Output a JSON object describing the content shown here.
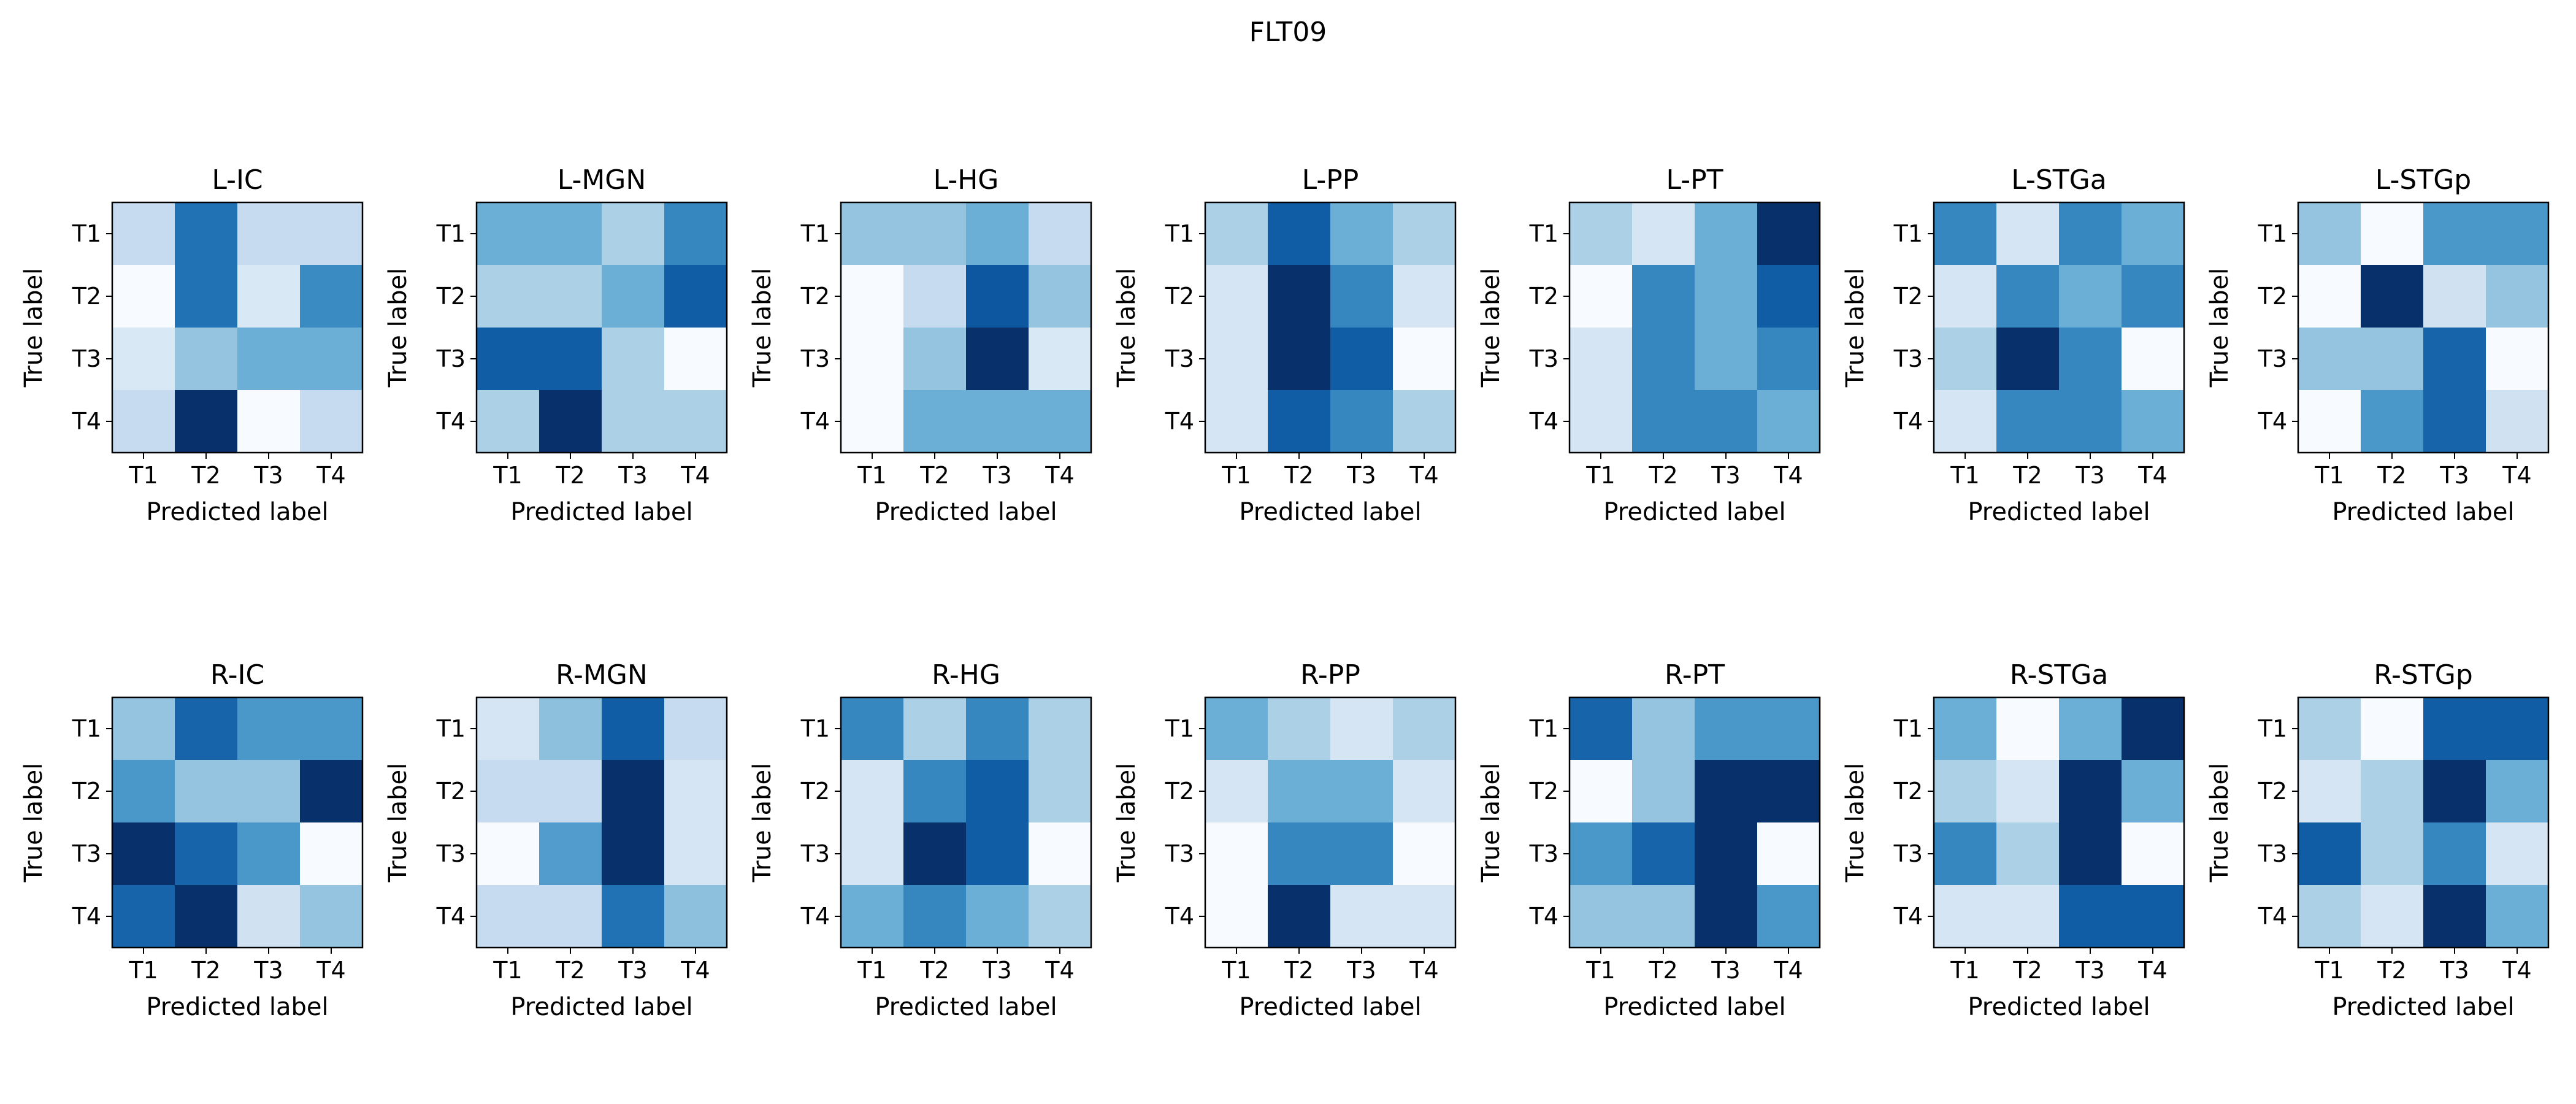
{
  "title": "FLT09",
  "colormap": {
    "name": "Blues",
    "low_color": "#f7fbff",
    "high_color": "#08306b"
  },
  "chart_data": [
    {
      "type": "heatmap",
      "title": "L-IC",
      "xlabel": "Predicted label",
      "ylabel": "True label",
      "x_ticks": [
        "T1",
        "T2",
        "T3",
        "T4"
      ],
      "y_ticks": [
        "T1",
        "T2",
        "T3",
        "T4"
      ],
      "values": [
        [
          0.25,
          0.75,
          0.25,
          0.25
        ],
        [
          0.0,
          0.75,
          0.15,
          0.65
        ],
        [
          0.15,
          0.4,
          0.5,
          0.5
        ],
        [
          0.25,
          1.0,
          0.0,
          0.25
        ]
      ]
    },
    {
      "type": "heatmap",
      "title": "L-MGN",
      "xlabel": "Predicted label",
      "ylabel": "True label",
      "x_ticks": [
        "T1",
        "T2",
        "T3",
        "T4"
      ],
      "y_ticks": [
        "T1",
        "T2",
        "T3",
        "T4"
      ],
      "values": [
        [
          0.5,
          0.5,
          0.33,
          0.67
        ],
        [
          0.33,
          0.33,
          0.5,
          0.83
        ],
        [
          0.83,
          0.83,
          0.33,
          0.0
        ],
        [
          0.33,
          1.0,
          0.33,
          0.33
        ]
      ]
    },
    {
      "type": "heatmap",
      "title": "L-HG",
      "xlabel": "Predicted label",
      "ylabel": "True label",
      "x_ticks": [
        "T1",
        "T2",
        "T3",
        "T4"
      ],
      "y_ticks": [
        "T1",
        "T2",
        "T3",
        "T4"
      ],
      "values": [
        [
          0.4,
          0.4,
          0.5,
          0.25
        ],
        [
          0.0,
          0.25,
          0.85,
          0.4
        ],
        [
          0.0,
          0.4,
          1.0,
          0.15
        ],
        [
          0.0,
          0.5,
          0.5,
          0.5
        ]
      ]
    },
    {
      "type": "heatmap",
      "title": "L-PP",
      "xlabel": "Predicted label",
      "ylabel": "True label",
      "x_ticks": [
        "T1",
        "T2",
        "T3",
        "T4"
      ],
      "y_ticks": [
        "T1",
        "T2",
        "T3",
        "T4"
      ],
      "values": [
        [
          0.33,
          0.83,
          0.5,
          0.33
        ],
        [
          0.17,
          1.0,
          0.67,
          0.17
        ],
        [
          0.17,
          1.0,
          0.83,
          0.0
        ],
        [
          0.17,
          0.83,
          0.67,
          0.33
        ]
      ]
    },
    {
      "type": "heatmap",
      "title": "L-PT",
      "xlabel": "Predicted label",
      "ylabel": "True label",
      "x_ticks": [
        "T1",
        "T2",
        "T3",
        "T4"
      ],
      "y_ticks": [
        "T1",
        "T2",
        "T3",
        "T4"
      ],
      "values": [
        [
          0.33,
          0.17,
          0.5,
          1.0
        ],
        [
          0.0,
          0.67,
          0.5,
          0.83
        ],
        [
          0.17,
          0.67,
          0.5,
          0.67
        ],
        [
          0.17,
          0.67,
          0.67,
          0.5
        ]
      ]
    },
    {
      "type": "heatmap",
      "title": "L-STGa",
      "xlabel": "Predicted label",
      "ylabel": "True label",
      "x_ticks": [
        "T1",
        "T2",
        "T3",
        "T4"
      ],
      "y_ticks": [
        "T1",
        "T2",
        "T3",
        "T4"
      ],
      "values": [
        [
          0.67,
          0.17,
          0.67,
          0.5
        ],
        [
          0.17,
          0.67,
          0.5,
          0.67
        ],
        [
          0.33,
          1.0,
          0.67,
          0.0
        ],
        [
          0.17,
          0.67,
          0.67,
          0.5
        ]
      ]
    },
    {
      "type": "heatmap",
      "title": "L-STGp",
      "xlabel": "Predicted label",
      "ylabel": "True label",
      "x_ticks": [
        "T1",
        "T2",
        "T3",
        "T4"
      ],
      "y_ticks": [
        "T1",
        "T2",
        "T3",
        "T4"
      ],
      "values": [
        [
          0.4,
          0.0,
          0.6,
          0.6
        ],
        [
          0.0,
          1.0,
          0.2,
          0.4
        ],
        [
          0.4,
          0.4,
          0.8,
          0.0
        ],
        [
          0.0,
          0.6,
          0.8,
          0.2
        ]
      ]
    },
    {
      "type": "heatmap",
      "title": "R-IC",
      "xlabel": "Predicted label",
      "ylabel": "True label",
      "x_ticks": [
        "T1",
        "T2",
        "T3",
        "T4"
      ],
      "y_ticks": [
        "T1",
        "T2",
        "T3",
        "T4"
      ],
      "values": [
        [
          0.4,
          0.8,
          0.6,
          0.6
        ],
        [
          0.6,
          0.4,
          0.4,
          1.0
        ],
        [
          1.0,
          0.8,
          0.6,
          0.0
        ],
        [
          0.8,
          1.0,
          0.2,
          0.4
        ]
      ]
    },
    {
      "type": "heatmap",
      "title": "R-MGN",
      "xlabel": "Predicted label",
      "ylabel": "True label",
      "x_ticks": [
        "T1",
        "T2",
        "T3",
        "T4"
      ],
      "y_ticks": [
        "T1",
        "T2",
        "T3",
        "T4"
      ],
      "values": [
        [
          0.17,
          0.42,
          0.83,
          0.25
        ],
        [
          0.25,
          0.25,
          1.0,
          0.17
        ],
        [
          0.0,
          0.58,
          1.0,
          0.17
        ],
        [
          0.25,
          0.25,
          0.75,
          0.42
        ]
      ]
    },
    {
      "type": "heatmap",
      "title": "R-HG",
      "xlabel": "Predicted label",
      "ylabel": "True label",
      "x_ticks": [
        "T1",
        "T2",
        "T3",
        "T4"
      ],
      "y_ticks": [
        "T1",
        "T2",
        "T3",
        "T4"
      ],
      "values": [
        [
          0.67,
          0.33,
          0.67,
          0.33
        ],
        [
          0.17,
          0.67,
          0.83,
          0.33
        ],
        [
          0.17,
          1.0,
          0.83,
          0.0
        ],
        [
          0.5,
          0.67,
          0.5,
          0.33
        ]
      ]
    },
    {
      "type": "heatmap",
      "title": "R-PP",
      "xlabel": "Predicted label",
      "ylabel": "True label",
      "x_ticks": [
        "T1",
        "T2",
        "T3",
        "T4"
      ],
      "y_ticks": [
        "T1",
        "T2",
        "T3",
        "T4"
      ],
      "values": [
        [
          0.5,
          0.33,
          0.17,
          0.33
        ],
        [
          0.17,
          0.5,
          0.5,
          0.17
        ],
        [
          0.0,
          0.67,
          0.67,
          0.0
        ],
        [
          0.0,
          1.0,
          0.17,
          0.17
        ]
      ]
    },
    {
      "type": "heatmap",
      "title": "R-PT",
      "xlabel": "Predicted label",
      "ylabel": "True label",
      "x_ticks": [
        "T1",
        "T2",
        "T3",
        "T4"
      ],
      "y_ticks": [
        "T1",
        "T2",
        "T3",
        "T4"
      ],
      "values": [
        [
          0.8,
          0.4,
          0.6,
          0.6
        ],
        [
          0.0,
          0.4,
          1.0,
          1.0
        ],
        [
          0.6,
          0.8,
          1.0,
          0.0
        ],
        [
          0.4,
          0.4,
          1.0,
          0.6
        ]
      ]
    },
    {
      "type": "heatmap",
      "title": "R-STGa",
      "xlabel": "Predicted label",
      "ylabel": "True label",
      "x_ticks": [
        "T1",
        "T2",
        "T3",
        "T4"
      ],
      "y_ticks": [
        "T1",
        "T2",
        "T3",
        "T4"
      ],
      "values": [
        [
          0.5,
          0.0,
          0.5,
          1.0
        ],
        [
          0.33,
          0.17,
          1.0,
          0.5
        ],
        [
          0.67,
          0.33,
          1.0,
          0.0
        ],
        [
          0.17,
          0.17,
          0.83,
          0.83
        ]
      ]
    },
    {
      "type": "heatmap",
      "title": "R-STGp",
      "xlabel": "Predicted label",
      "ylabel": "True label",
      "x_ticks": [
        "T1",
        "T2",
        "T3",
        "T4"
      ],
      "y_ticks": [
        "T1",
        "T2",
        "T3",
        "T4"
      ],
      "values": [
        [
          0.33,
          0.0,
          0.83,
          0.83
        ],
        [
          0.17,
          0.33,
          1.0,
          0.5
        ],
        [
          0.83,
          0.33,
          0.67,
          0.17
        ],
        [
          0.33,
          0.17,
          1.0,
          0.5
        ]
      ]
    }
  ]
}
